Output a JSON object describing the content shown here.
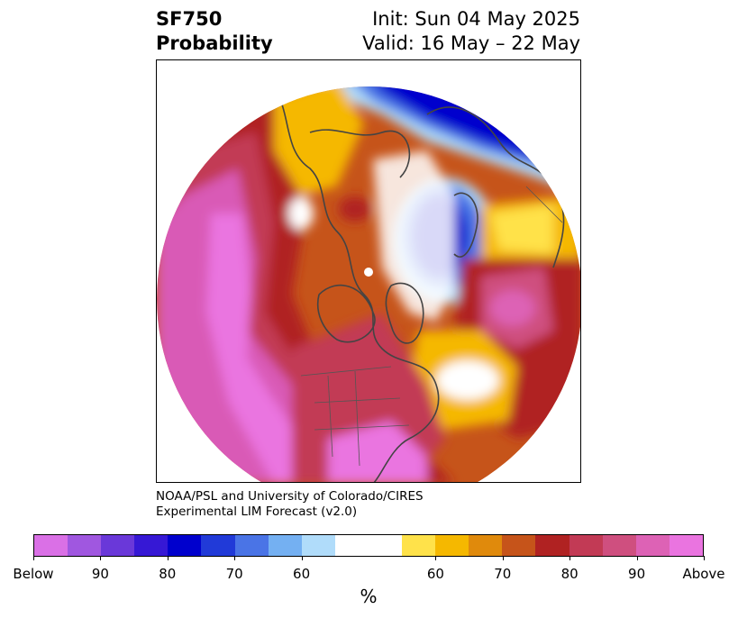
{
  "header": {
    "title_line1": "SF750",
    "title_line2": "Probability",
    "init_text": "Init: Sun 04 May 2025",
    "valid_text": "Valid: 16 May – 22 May"
  },
  "credit": {
    "line1": "NOAA/PSL and University of Colorado/CIRES",
    "line2": "Experimental LIM Forecast (v2.0)"
  },
  "colorbar": {
    "colors": [
      "#da70e6",
      "#a057e0",
      "#6a38d9",
      "#3618d5",
      "#0000cd",
      "#213ad8",
      "#4a74e6",
      "#74b0f2",
      "#b0dcfa",
      "#ffffff",
      "#ffe24a",
      "#f5b800",
      "#e08a0c",
      "#c6541a",
      "#b02222",
      "#c23a55",
      "#cf4f7f",
      "#dd62b5",
      "#ea74e0"
    ],
    "labels": [
      "Below",
      "90",
      "80",
      "70",
      "60",
      "60",
      "70",
      "80",
      "90",
      "Above"
    ],
    "unit": "%"
  },
  "map": {
    "colors": {
      "above_strong": "#ea74e0",
      "above_high": "#d95ab6",
      "above_mid": "#c23a55",
      "above_low": "#b02222",
      "warm_mid": "#c6541a",
      "warm_low": "#e08a0c",
      "warm_lower": "#f5b800",
      "warm_lowest": "#ffe24a",
      "neutral": "#ffffff",
      "cool_low": "#b0dcfa",
      "cool_mid": "#74b0f2",
      "cool_high": "#4a74e6",
      "cool_strong": "#213ad8",
      "below_strong": "#0000cd",
      "coast": "#444444"
    }
  }
}
